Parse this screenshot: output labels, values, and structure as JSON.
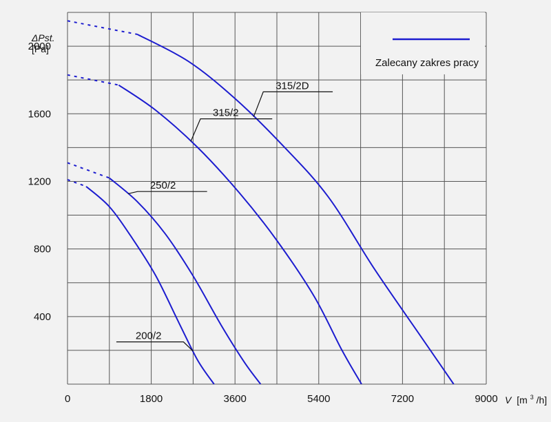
{
  "chart_data": {
    "type": "line",
    "title": "",
    "ylabel_line1": "ΔPst.",
    "ylabel_line2": "[Pa]",
    "xlabel_var": "V",
    "xlabel_unit_pre": "[m",
    "xlabel_unit_sup": "3",
    "xlabel_unit_post": "/h]",
    "xlim": [
      0,
      9000
    ],
    "ylim": [
      0,
      2200
    ],
    "grid": true,
    "x_ticks": [
      0,
      1800,
      3600,
      5400,
      7200,
      9000
    ],
    "x_tick_labels": [
      "0",
      "1800",
      "3600",
      "5400",
      "7200",
      "9000"
    ],
    "y_ticks": [
      400,
      800,
      1200,
      1600,
      2000
    ],
    "y_tick_labels": [
      "400",
      "800",
      "1200",
      "1600",
      "2000"
    ],
    "legend": {
      "label": "Zalecany zakres pracy",
      "position": "top-right"
    },
    "colors": {
      "curve": "#1c1ccf",
      "grid": "#555555",
      "background": "#f2f2f2"
    },
    "series": [
      {
        "name": "200/2",
        "dashed_until_x": 400,
        "x": [
          0,
          400,
          900,
          1400,
          1900,
          2400,
          2800,
          3150
        ],
        "y": [
          1210,
          1170,
          1050,
          860,
          640,
          360,
          140,
          0
        ]
      },
      {
        "name": "250/2",
        "dashed_until_x": 900,
        "x": [
          0,
          900,
          1500,
          2100,
          2700,
          3300,
          3800,
          4150
        ],
        "y": [
          1310,
          1220,
          1080,
          890,
          640,
          350,
          130,
          0
        ]
      },
      {
        "name": "315/2",
        "dashed_until_x": 1100,
        "x": [
          0,
          1100,
          1900,
          2800,
          3700,
          4500,
          5300,
          5900,
          6320
        ],
        "y": [
          1830,
          1770,
          1620,
          1400,
          1130,
          850,
          520,
          200,
          0
        ]
      },
      {
        "name": "315/2D",
        "dashed_until_x": 1500,
        "x": [
          0,
          1500,
          2600,
          3600,
          4600,
          5600,
          6600,
          7600,
          8300
        ],
        "y": [
          2150,
          2070,
          1910,
          1690,
          1420,
          1110,
          680,
          280,
          0
        ]
      }
    ],
    "annotations": [
      {
        "text": "315/2D",
        "series": "315/2D",
        "at_x": 4000,
        "line_end_x": 5700,
        "label_y": 1730
      },
      {
        "text": "315/2",
        "series": "315/2",
        "at_x": 2650,
        "line_end_x": 4400,
        "label_y": 1570
      },
      {
        "text": "250/2",
        "series": "250/2",
        "at_x": 1300,
        "line_end_x": 3000,
        "label_y": 1140
      },
      {
        "text": "200/2",
        "series": "200/2",
        "at_x": 2700,
        "line_end_x": 1050,
        "label_y": 250
      }
    ]
  }
}
